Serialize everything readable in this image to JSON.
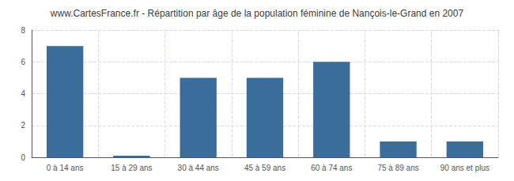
{
  "chart_data": {
    "type": "bar",
    "title": "www.CartesFrance.fr - Répartition par âge de la population féminine de Nançois-le-Grand en 2007",
    "categories": [
      "0 à 14 ans",
      "15 à 29 ans",
      "30 à 44 ans",
      "45 à 59 ans",
      "60 à 74 ans",
      "75 à 89 ans",
      "90 ans et plus"
    ],
    "values": [
      7,
      0.1,
      5,
      5,
      6,
      1,
      1
    ],
    "color": "#3a6d9a",
    "ylim": [
      0,
      8
    ],
    "yticks": [
      0,
      2,
      4,
      6,
      8
    ],
    "grid": true
  }
}
